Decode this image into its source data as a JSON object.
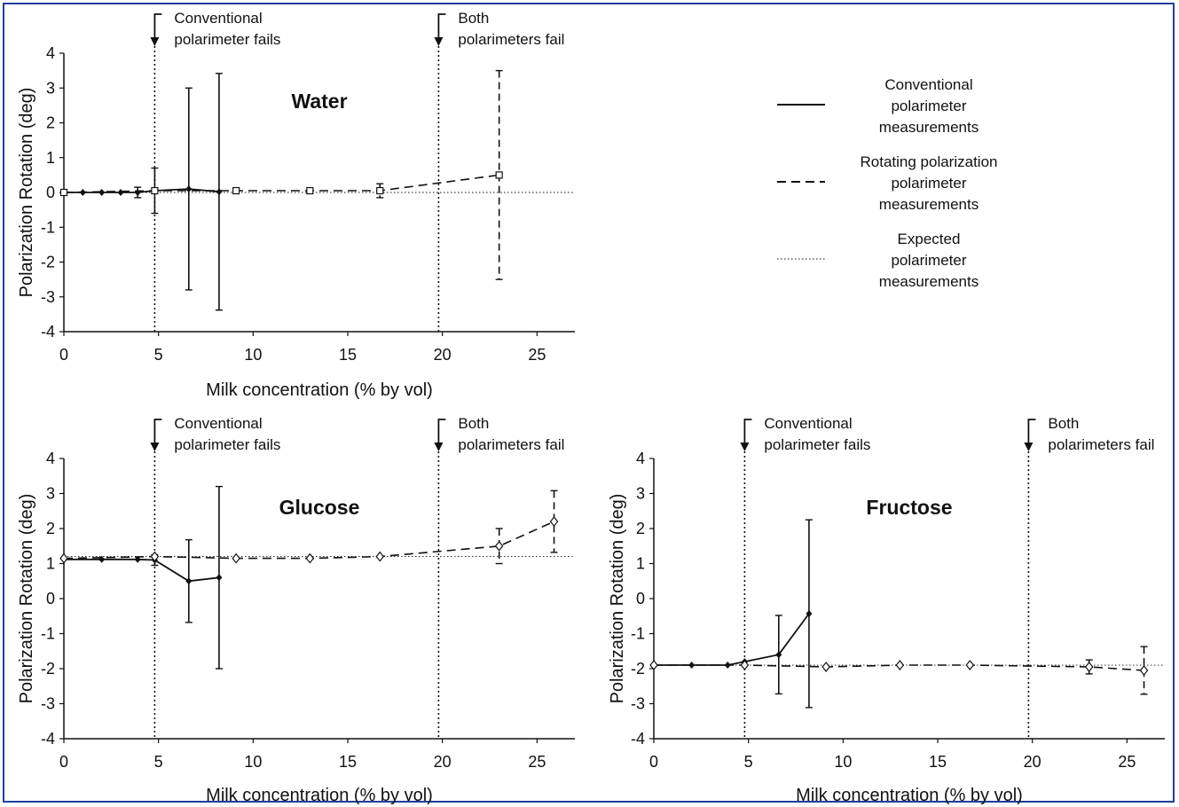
{
  "colors": {
    "frame": "#1f3f9f",
    "ink": "#111111"
  },
  "legend": {
    "entries": [
      {
        "lines": [
          "Conventional",
          "polarimeter",
          "measurements"
        ],
        "style": "solid"
      },
      {
        "lines": [
          "Rotating polarization",
          "polarimeter",
          "measurements"
        ],
        "style": "dashed"
      },
      {
        "lines": [
          "Expected",
          "polarimeter",
          "measurements"
        ],
        "style": "dotted"
      }
    ]
  },
  "chart_data": [
    {
      "type": "line",
      "title": "Water",
      "xlabel": "Milk concentration (% by vol)",
      "ylabel": "Polarization Rotation (deg)",
      "xlim": [
        0,
        27
      ],
      "ylim": [
        -4,
        4
      ],
      "xticks": [
        0,
        5,
        10,
        15,
        20,
        25
      ],
      "yticks": [
        -4,
        -3,
        -2,
        -1,
        0,
        1,
        2,
        3,
        4
      ],
      "expected": 0,
      "vlines": [
        {
          "x": 4.8,
          "label": [
            "Conventional",
            "polarimeter fails"
          ]
        },
        {
          "x": 19.8,
          "label": [
            "Both",
            "polarimeters fail"
          ]
        }
      ],
      "series": [
        {
          "name": "Conventional polarimeter measurements",
          "style": "solid",
          "marker": "diamond",
          "x": [
            0,
            1,
            2,
            3,
            3.9,
            4.8,
            6.6,
            8.2
          ],
          "y": [
            0,
            0,
            0,
            0,
            0,
            0.05,
            0.1,
            0.02
          ],
          "err": [
            0,
            0.05,
            0.05,
            0.05,
            0.15,
            0.65,
            2.9,
            3.4
          ]
        },
        {
          "name": "Rotating polarization polarimeter measurements",
          "style": "dashed",
          "marker": "square",
          "x": [
            0,
            4.8,
            9.1,
            13.0,
            16.7,
            23.0
          ],
          "y": [
            0,
            0.05,
            0.05,
            0.05,
            0.05,
            0.5
          ],
          "err": [
            0,
            0.05,
            0.1,
            0.1,
            0.2,
            3.0
          ]
        }
      ]
    },
    {
      "type": "line",
      "title": "Glucose",
      "xlabel": "Milk concentration (% by vol)",
      "ylabel": "Polarization Rotation (deg)",
      "xlim": [
        0,
        27
      ],
      "ylim": [
        -4,
        4
      ],
      "xticks": [
        0,
        5,
        10,
        15,
        20,
        25
      ],
      "yticks": [
        -4,
        -3,
        -2,
        -1,
        0,
        1,
        2,
        3,
        4
      ],
      "expected": 1.2,
      "vlines": [
        {
          "x": 4.8,
          "label": [
            "Conventional",
            "polarimeter fails"
          ]
        },
        {
          "x": 19.8,
          "label": [
            "Both",
            "polarimeters fail"
          ]
        }
      ],
      "series": [
        {
          "name": "Conventional polarimeter measurements",
          "style": "solid",
          "marker": "diamond",
          "x": [
            0,
            2,
            3.9,
            4.8,
            6.6,
            8.2
          ],
          "y": [
            1.12,
            1.12,
            1.12,
            1.1,
            0.5,
            0.6
          ],
          "err": [
            0.05,
            0.05,
            0.1,
            0.15,
            1.18,
            2.6
          ]
        },
        {
          "name": "Rotating polarization polarimeter measurements",
          "style": "dashed",
          "marker": "diamond-open",
          "x": [
            0,
            4.8,
            9.1,
            13.0,
            16.7,
            23.0,
            25.9
          ],
          "y": [
            1.15,
            1.2,
            1.15,
            1.15,
            1.2,
            1.5,
            2.2
          ],
          "err": [
            0.05,
            0.05,
            0.1,
            0.1,
            0.1,
            0.5,
            0.88
          ]
        }
      ]
    },
    {
      "type": "line",
      "title": "Fructose",
      "xlabel": "Milk concentration (% by vol)",
      "ylabel": "Polarization Rotation (deg)",
      "xlim": [
        0,
        27
      ],
      "ylim": [
        -4,
        4
      ],
      "xticks": [
        0,
        5,
        10,
        15,
        20,
        25
      ],
      "yticks": [
        -4,
        -3,
        -2,
        -1,
        0,
        1,
        2,
        3,
        4
      ],
      "expected": -1.9,
      "vlines": [
        {
          "x": 4.8,
          "label": [
            "Conventional",
            "polarimeter fails"
          ]
        },
        {
          "x": 19.8,
          "label": [
            "Both",
            "polarimeters fail"
          ]
        }
      ],
      "series": [
        {
          "name": "Conventional polarimeter measurements",
          "style": "solid",
          "marker": "diamond",
          "x": [
            0,
            2,
            3.9,
            4.8,
            6.6,
            8.2
          ],
          "y": [
            -1.9,
            -1.9,
            -1.9,
            -1.8,
            -1.6,
            -0.43
          ],
          "err": [
            0.05,
            0.05,
            0.05,
            0.1,
            1.12,
            2.68
          ]
        },
        {
          "name": "Rotating polarization polarimeter measurements",
          "style": "dashed",
          "marker": "diamond-open",
          "x": [
            0,
            4.8,
            9.1,
            13.0,
            16.7,
            23.0,
            25.9
          ],
          "y": [
            -1.9,
            -1.9,
            -1.95,
            -1.9,
            -1.9,
            -1.95,
            -2.05
          ],
          "err": [
            0.05,
            0.05,
            0.05,
            0.05,
            0.05,
            0.2,
            0.68
          ]
        }
      ]
    }
  ]
}
